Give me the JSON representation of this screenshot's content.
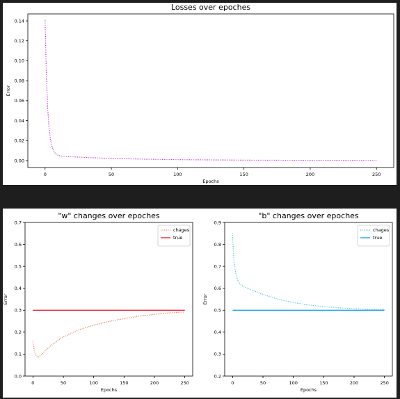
{
  "chart_data": [
    {
      "type": "line",
      "title": "Losses over epoches",
      "xlabel": "Epochs",
      "ylabel": "Error",
      "xlim": [
        -13,
        263
      ],
      "ylim": [
        -0.007,
        0.147
      ],
      "xticks": [
        0,
        50,
        100,
        150,
        200,
        250
      ],
      "yticks": [
        0.0,
        0.02,
        0.04,
        0.06,
        0.08,
        0.1,
        0.12,
        0.14
      ],
      "yticklabels": [
        "0.00",
        "0.02",
        "0.04",
        "0.06",
        "0.08",
        "0.10",
        "0.12",
        "0.14"
      ],
      "grid": false,
      "legend": null,
      "series": [
        {
          "style": "dotted",
          "color": "#c020d8",
          "x": [
            0,
            1,
            2,
            3,
            4,
            5,
            6,
            7,
            8,
            10,
            12,
            15,
            20,
            30,
            50,
            75,
            100,
            150,
            200,
            250
          ],
          "y": [
            0.141,
            0.085,
            0.052,
            0.033,
            0.022,
            0.015,
            0.011,
            0.0085,
            0.0068,
            0.0052,
            0.0045,
            0.0042,
            0.0038,
            0.0031,
            0.0021,
            0.0014,
            0.0009,
            0.0004,
            0.0002,
            0.0001
          ]
        }
      ]
    },
    {
      "type": "line",
      "title": "\"w\" changes over epoches",
      "xlabel": "Epochs",
      "ylabel": "Error",
      "xlim": [
        -13,
        263
      ],
      "ylim": [
        0.0,
        0.7
      ],
      "xticks": [
        0,
        50,
        100,
        150,
        200,
        250
      ],
      "yticks": [
        0.0,
        0.1,
        0.2,
        0.3,
        0.4,
        0.5,
        0.6,
        0.7
      ],
      "yticklabels": [
        "0.0",
        "0.1",
        "0.2",
        "0.3",
        "0.4",
        "0.5",
        "0.6",
        "0.7"
      ],
      "grid": false,
      "legend": "top-right",
      "series": [
        {
          "name": "chages",
          "style": "dotted",
          "color": "#f07050",
          "x": [
            0,
            2,
            4,
            6,
            8,
            10,
            15,
            20,
            30,
            50,
            75,
            100,
            125,
            150,
            175,
            200,
            225,
            250
          ],
          "y": [
            0.16,
            0.12,
            0.1,
            0.09,
            0.085,
            0.088,
            0.1,
            0.115,
            0.14,
            0.178,
            0.21,
            0.232,
            0.249,
            0.262,
            0.273,
            0.281,
            0.288,
            0.292
          ]
        },
        {
          "name": "true",
          "style": "solid",
          "color": "#e0283c",
          "x": [
            0,
            250
          ],
          "y": [
            0.3,
            0.3
          ]
        }
      ]
    },
    {
      "type": "line",
      "title": "\"b\" changes over epoches",
      "xlabel": "Epochs",
      "ylabel": "Error",
      "xlim": [
        -13,
        263
      ],
      "ylim": [
        0.2,
        0.9
      ],
      "xticks": [
        0,
        50,
        100,
        150,
        200,
        250
      ],
      "yticks": [
        0.2,
        0.3,
        0.4,
        0.5,
        0.6,
        0.7,
        0.8,
        0.9
      ],
      "yticklabels": [
        "0.2",
        "0.3",
        "0.4",
        "0.5",
        "0.6",
        "0.7",
        "0.8",
        "0.9"
      ],
      "grid": false,
      "legend": "top-right",
      "series": [
        {
          "name": "chages",
          "style": "dotted",
          "color": "#40b8e8",
          "x": [
            0,
            1,
            2,
            3,
            4,
            5,
            6,
            8,
            10,
            13,
            16,
            20,
            30,
            50,
            75,
            100,
            125,
            150,
            175,
            200,
            225,
            250
          ],
          "y": [
            0.85,
            0.78,
            0.74,
            0.71,
            0.69,
            0.672,
            0.658,
            0.64,
            0.628,
            0.618,
            0.612,
            0.606,
            0.594,
            0.572,
            0.55,
            0.535,
            0.524,
            0.516,
            0.511,
            0.507,
            0.504,
            0.503
          ]
        },
        {
          "name": "true",
          "style": "solid",
          "color": "#1aa8e0",
          "x": [
            0,
            250
          ],
          "y": [
            0.5,
            0.5
          ]
        }
      ]
    }
  ]
}
